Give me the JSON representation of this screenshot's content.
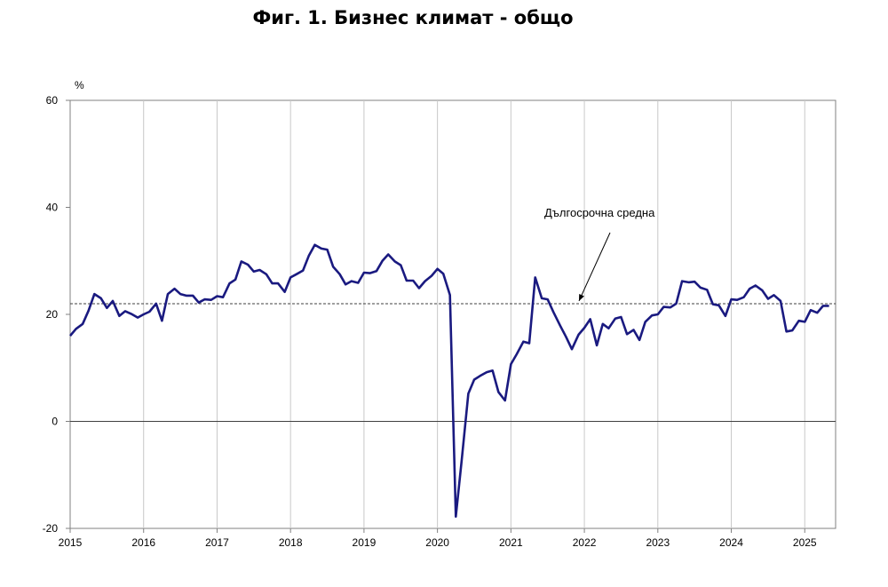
{
  "chart_data": {
    "type": "line",
    "title": "Фиг. 1. Бизнес климат - общо",
    "ylabel": "%",
    "xlabel": "",
    "ylim": [
      -20,
      60
    ],
    "yticks": [
      "60",
      "40",
      "20",
      "0",
      "-20"
    ],
    "xticks": [
      "2015",
      "2016",
      "2017",
      "2018",
      "2019",
      "2020",
      "2021",
      "2022",
      "2023",
      "2024",
      "2025"
    ],
    "xlim": [
      2015.0,
      2025.42
    ],
    "grid": "vertical",
    "reference_line": {
      "label": "Дългосрочна средна",
      "value": 22
    },
    "series": [
      {
        "color": "#1a1a80",
        "x": [
          2015.0,
          2015.08,
          2015.17,
          2015.25,
          2015.33,
          2015.42,
          2015.5,
          2015.58,
          2015.67,
          2015.75,
          2015.83,
          2015.92,
          2016.0,
          2016.08,
          2016.17,
          2016.25,
          2016.33,
          2016.42,
          2016.5,
          2016.58,
          2016.67,
          2016.75,
          2016.83,
          2016.92,
          2017.0,
          2017.08,
          2017.17,
          2017.25,
          2017.33,
          2017.42,
          2017.5,
          2017.58,
          2017.67,
          2017.75,
          2017.83,
          2017.92,
          2018.0,
          2018.08,
          2018.17,
          2018.25,
          2018.33,
          2018.42,
          2018.5,
          2018.58,
          2018.67,
          2018.75,
          2018.83,
          2018.92,
          2019.0,
          2019.08,
          2019.17,
          2019.25,
          2019.33,
          2019.42,
          2019.5,
          2019.58,
          2019.67,
          2019.75,
          2019.83,
          2019.92,
          2020.0,
          2020.08,
          2020.17,
          2020.25,
          2020.33,
          2020.42,
          2020.5,
          2020.58,
          2020.67,
          2020.75,
          2020.83,
          2020.92,
          2021.0,
          2021.08,
          2021.17,
          2021.25,
          2021.33,
          2021.42,
          2021.5,
          2021.58,
          2021.67,
          2021.75,
          2021.83,
          2021.92,
          2022.0,
          2022.08,
          2022.17,
          2022.25,
          2022.33,
          2022.42,
          2022.5,
          2022.58,
          2022.67,
          2022.75,
          2022.83,
          2022.92,
          2023.0,
          2023.08,
          2023.17,
          2023.25,
          2023.33,
          2023.42,
          2023.5,
          2023.58,
          2023.67,
          2023.75,
          2023.83,
          2023.92,
          2024.0,
          2024.08,
          2024.17,
          2024.25,
          2024.33,
          2024.42,
          2024.5,
          2024.58,
          2024.67,
          2024.75,
          2024.83,
          2024.92,
          2025.0,
          2025.08,
          2025.17,
          2025.25,
          2025.33
        ],
        "values": [
          16.0,
          17.3,
          18.2,
          20.7,
          23.8,
          23.0,
          21.2,
          22.5,
          19.7,
          20.6,
          20.1,
          19.4,
          20.0,
          20.5,
          22.0,
          18.8,
          23.8,
          24.8,
          23.8,
          23.5,
          23.5,
          22.2,
          22.8,
          22.7,
          23.4,
          23.2,
          25.8,
          26.5,
          29.9,
          29.3,
          28.0,
          28.3,
          27.5,
          25.8,
          25.8,
          24.2,
          26.9,
          27.5,
          28.2,
          31.0,
          33.0,
          32.3,
          32.1,
          28.9,
          27.5,
          25.6,
          26.2,
          25.9,
          27.8,
          27.7,
          28.1,
          30.0,
          31.2,
          29.9,
          29.2,
          26.3,
          26.3,
          24.9,
          26.2,
          27.2,
          28.5,
          27.6,
          23.6,
          -17.8,
          -7.3,
          5.2,
          7.8,
          8.5,
          9.2,
          9.5,
          5.5,
          3.9,
          10.7,
          12.6,
          14.9,
          14.6,
          26.9,
          23.0,
          22.8,
          20.4,
          17.9,
          15.8,
          13.5,
          16.2,
          17.5,
          19.1,
          14.2,
          18.2,
          17.4,
          19.2,
          19.5,
          16.3,
          17.1,
          15.2,
          18.6,
          19.8,
          20.0,
          21.4,
          21.3,
          22.0,
          26.2,
          26.0,
          26.1,
          25.0,
          24.6,
          21.9,
          21.7,
          19.7,
          22.8,
          22.7,
          23.2,
          24.8,
          25.4,
          24.5,
          22.9,
          23.6,
          22.5,
          16.8,
          17.0,
          18.8,
          18.6,
          20.8,
          20.3,
          21.6,
          21.6
        ]
      }
    ]
  }
}
